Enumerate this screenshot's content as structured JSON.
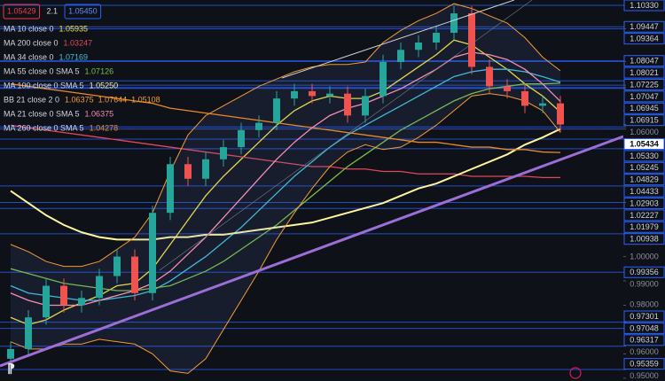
{
  "chart_data": {
    "type": "candlestick",
    "quote": {
      "bid": "1.05429",
      "spread": "2.1",
      "ask": "1.05450"
    },
    "up_color": "#26a69a",
    "down_color": "#ef5350",
    "ylim": [
      0.94885,
      1.10549
    ],
    "yticks": [
      {
        "value": 1.06,
        "label": "1.06000"
      },
      {
        "value": 1.0,
        "label": "1.00000"
      },
      {
        "value": 0.99,
        "label": "0.99000"
      },
      {
        "value": 0.98,
        "label": "0.98000"
      },
      {
        "value": 0.96,
        "label": "0.96000"
      },
      {
        "value": 0.95,
        "label": "0.95000"
      }
    ],
    "levels": [
      {
        "value": 1.1033,
        "label": "1.10330"
      },
      {
        "value": 1.09447,
        "label": "1.09447"
      },
      {
        "value": 1.09364,
        "label": "1.09364"
      },
      {
        "value": 1.08047,
        "label": "1.08047"
      },
      {
        "value": 1.08021,
        "label": "1.08021"
      },
      {
        "value": 1.07225,
        "label": "1.07225"
      },
      {
        "value": 1.07047,
        "label": "1.07047"
      },
      {
        "value": 1.06945,
        "label": "1.06945"
      },
      {
        "value": 1.06915,
        "label": "1.06915"
      },
      {
        "value": 1.0533,
        "label": "1.05330"
      },
      {
        "value": 1.05245,
        "label": "1.05245"
      },
      {
        "value": 1.04829,
        "label": "1.04829"
      },
      {
        "value": 1.04433,
        "label": "1.04433"
      },
      {
        "value": 1.02903,
        "label": "1.02903"
      },
      {
        "value": 1.02227,
        "label": "1.02227"
      },
      {
        "value": 1.01979,
        "label": "1.01979"
      },
      {
        "value": 1.00938,
        "label": "1.00938"
      },
      {
        "value": 0.99356,
        "label": "0.99356"
      },
      {
        "value": 0.97301,
        "label": "0.97301"
      },
      {
        "value": 0.97048,
        "label": "0.97048"
      },
      {
        "value": 0.96317,
        "label": "0.96317"
      },
      {
        "value": 0.95359,
        "label": "0.95359"
      }
    ],
    "last_price": {
      "value": 1.05434,
      "label": "1.05434"
    },
    "open": [
      0.958,
      0.962,
      0.975,
      0.988,
      0.98,
      0.983,
      0.992,
      1.0,
      0.985,
      1.018,
      1.038,
      1.032,
      1.04,
      1.045,
      1.052,
      1.055,
      1.065,
      1.068,
      1.066,
      1.067,
      1.058,
      1.066,
      1.08,
      1.085,
      1.088,
      1.092,
      1.1,
      1.078,
      1.07,
      1.068,
      1.062,
      1.063
    ],
    "high": [
      0.965,
      0.978,
      0.991,
      0.991,
      0.986,
      0.995,
      1.003,
      1.003,
      1.021,
      1.041,
      1.041,
      1.043,
      1.048,
      1.055,
      1.058,
      1.068,
      1.071,
      1.071,
      1.07,
      1.07,
      1.069,
      1.083,
      1.088,
      1.091,
      1.095,
      1.103,
      1.103,
      1.081,
      1.073,
      1.071,
      1.066,
      1.066
    ],
    "low": [
      0.955,
      0.959,
      0.972,
      0.977,
      0.977,
      0.98,
      0.989,
      0.982,
      0.982,
      1.015,
      1.029,
      1.029,
      1.037,
      1.042,
      1.049,
      1.052,
      1.062,
      1.063,
      1.063,
      1.055,
      1.055,
      1.063,
      1.077,
      1.082,
      1.085,
      1.089,
      1.075,
      1.067,
      1.065,
      1.059,
      1.059,
      1.051
    ],
    "close": [
      0.962,
      0.975,
      0.988,
      0.98,
      0.983,
      0.992,
      1.0,
      0.985,
      1.018,
      1.038,
      1.032,
      1.04,
      1.045,
      1.052,
      1.055,
      1.065,
      1.068,
      1.066,
      1.067,
      1.058,
      1.066,
      1.08,
      1.085,
      1.088,
      1.092,
      1.1,
      1.078,
      1.07,
      1.068,
      1.062,
      1.063,
      1.0543
    ],
    "series": [
      {
        "name": "MA 10 close 0",
        "color": "#f5e13c",
        "legend_values": [
          "1.05935"
        ],
        "values": [
          0.975,
          0.972,
          0.974,
          0.978,
          0.981,
          0.984,
          0.988,
          0.989,
          0.995,
          1.005,
          1.015,
          1.025,
          1.033,
          1.04,
          1.047,
          1.054,
          1.06,
          1.064,
          1.066,
          1.065,
          1.065,
          1.068,
          1.073,
          1.078,
          1.083,
          1.089,
          1.087,
          1.082,
          1.077,
          1.071,
          1.066,
          1.0594
        ]
      },
      {
        "name": "MA 200 close 0",
        "color": "#e0475b",
        "legend_values": [
          "1.03247"
        ],
        "values": [
          1.054,
          1.053,
          1.052,
          1.051,
          1.05,
          1.049,
          1.048,
          1.047,
          1.046,
          1.045,
          1.044,
          1.043,
          1.042,
          1.041,
          1.04,
          1.039,
          1.038,
          1.037,
          1.037,
          1.036,
          1.036,
          1.035,
          1.035,
          1.034,
          1.034,
          1.034,
          1.033,
          1.033,
          1.033,
          1.033,
          1.0325,
          1.0325
        ]
      },
      {
        "name": "MA 34 close 0",
        "color": "#3fc1d9",
        "legend_values": [
          "1.07169"
        ],
        "values": [
          0.988,
          0.985,
          0.984,
          0.983,
          0.982,
          0.982,
          0.983,
          0.984,
          0.986,
          0.99,
          0.995,
          1.0,
          1.006,
          1.012,
          1.019,
          1.026,
          1.033,
          1.039,
          1.045,
          1.05,
          1.054,
          1.058,
          1.062,
          1.066,
          1.07,
          1.074,
          1.076,
          1.077,
          1.077,
          1.076,
          1.074,
          1.0717
        ]
      },
      {
        "name": "MA 55 close 0 SMA 5",
        "color": "#7bc043",
        "legend_values": [
          "1.07126"
        ],
        "values": [
          0.995,
          0.993,
          0.991,
          0.989,
          0.988,
          0.987,
          0.986,
          0.986,
          0.987,
          0.988,
          0.991,
          0.994,
          0.998,
          1.003,
          1.008,
          1.013,
          1.019,
          1.025,
          1.031,
          1.037,
          1.042,
          1.047,
          1.052,
          1.056,
          1.06,
          1.064,
          1.067,
          1.069,
          1.07,
          1.071,
          1.071,
          1.0713
        ]
      },
      {
        "name": "MA 100 close 0 SMA 5",
        "color": "#fff59d",
        "legend_values": [
          "1.05250"
        ],
        "values": [
          1.027,
          1.022,
          1.017,
          1.013,
          1.01,
          1.008,
          1.007,
          1.007,
          1.007,
          1.008,
          1.008,
          1.009,
          1.009,
          1.01,
          1.011,
          1.012,
          1.013,
          1.014,
          1.016,
          1.018,
          1.02,
          1.022,
          1.025,
          1.028,
          1.03,
          1.033,
          1.036,
          1.039,
          1.042,
          1.046,
          1.049,
          1.0525
        ]
      },
      {
        "name": "BB 21 close 2 0",
        "color": "#f39c33",
        "legend_values": [
          "1.06375",
          "1.07644",
          "1.05108"
        ],
        "upper": [
          1.005,
          1.002,
          0.998,
          0.996,
          0.996,
          0.998,
          1.003,
          1.008,
          1.018,
          1.035,
          1.05,
          1.058,
          1.062,
          1.066,
          1.07,
          1.073,
          1.076,
          1.078,
          1.079,
          1.079,
          1.08,
          1.088,
          1.093,
          1.097,
          1.1,
          1.104,
          1.102,
          1.099,
          1.096,
          1.09,
          1.082,
          1.0764
        ],
        "lower": [
          0.965,
          0.962,
          0.962,
          0.964,
          0.964,
          0.966,
          0.965,
          0.964,
          0.96,
          0.953,
          0.952,
          0.958,
          0.97,
          0.982,
          0.994,
          1.007,
          1.018,
          1.028,
          1.037,
          1.043,
          1.046,
          1.044,
          1.045,
          1.049,
          1.054,
          1.06,
          1.066,
          1.067,
          1.066,
          1.064,
          1.06,
          1.0511
        ]
      },
      {
        "name": "MA 21 close 0 SMA 5",
        "color": "#f48fb1",
        "legend_values": [
          "1.06375"
        ],
        "values": [
          0.985,
          0.982,
          0.98,
          0.98,
          0.98,
          0.982,
          0.984,
          0.986,
          0.989,
          0.994,
          1.001,
          1.008,
          1.016,
          1.024,
          1.032,
          1.04,
          1.047,
          1.053,
          1.058,
          1.061,
          1.063,
          1.066,
          1.069,
          1.073,
          1.077,
          1.082,
          1.084,
          1.083,
          1.081,
          1.077,
          1.071,
          1.0638
        ]
      },
      {
        "name": "MA 260 close 0 SMA 5",
        "color": "#e8892b",
        "legend_values": [
          "1.04278"
        ],
        "values": [
          1.071,
          1.07,
          1.069,
          1.068,
          1.067,
          1.066,
          1.065,
          1.064,
          1.063,
          1.061,
          1.06,
          1.059,
          1.058,
          1.057,
          1.056,
          1.055,
          1.054,
          1.053,
          1.052,
          1.051,
          1.05,
          1.049,
          1.048,
          1.047,
          1.047,
          1.046,
          1.045,
          1.045,
          1.044,
          1.044,
          1.043,
          1.0428
        ]
      }
    ]
  }
}
